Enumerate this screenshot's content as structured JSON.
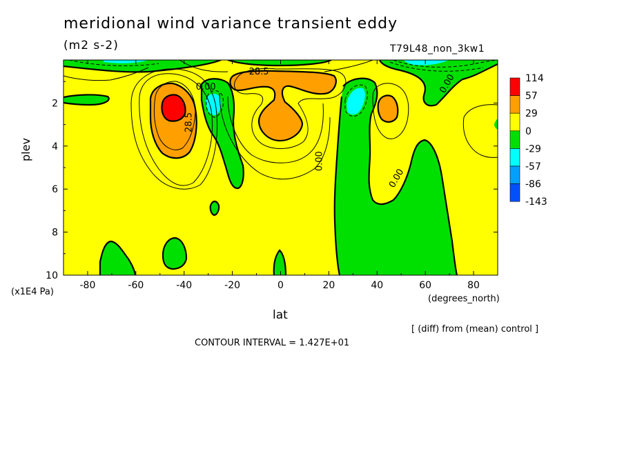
{
  "header": {
    "title": "meridional wind variance transient eddy",
    "units": "(m2 s-2)",
    "run_name": "T79L48_non_3kw1"
  },
  "axes": {
    "ylabel": "plev",
    "y_multiplier": "(x1E4 Pa)",
    "xlabel": "lat",
    "x_unit": "(degrees_north)"
  },
  "notes": {
    "diff": "[ (diff) from (mean) control ]",
    "contour_interval": "CONTOUR INTERVAL = 1.427E+01"
  },
  "chart_data": {
    "type": "heatmap",
    "title": "meridional wind variance transient eddy",
    "xlabel": "lat",
    "ylabel": "plev",
    "xlim": [
      -90,
      90
    ],
    "ylim": [
      10,
      0
    ],
    "x_ticks": [
      "-80",
      "-60",
      "-40",
      "-20",
      "0",
      "20",
      "40",
      "60",
      "80"
    ],
    "x_tick_values": [
      -80,
      -60,
      -40,
      -20,
      0,
      20,
      40,
      60,
      80
    ],
    "y_ticks": [
      "2",
      "4",
      "6",
      "8",
      "10"
    ],
    "y_tick_values": [
      2,
      4,
      6,
      8,
      10
    ],
    "legend": {
      "placement": "right",
      "labels": [
        "114",
        "57",
        "29",
        "0",
        "-29",
        "-57",
        "-86",
        "-143"
      ],
      "colors": [
        "#ff0000",
        "#ffa000",
        "#ffff00",
        "#00e000",
        "#00ffff",
        "#00a0ff",
        "#0050ff"
      ]
    },
    "contour_labels": [
      {
        "text": "28.5",
        "lat": -9,
        "plev": 0.55,
        "angle": 0
      },
      {
        "text": "0.00",
        "lat": -31,
        "plev": 1.25,
        "angle": 0
      },
      {
        "text": "28.5",
        "lat": -38,
        "plev": 2.9,
        "angle": -90
      },
      {
        "text": "0.00",
        "lat": 16,
        "plev": 4.7,
        "angle": -90
      },
      {
        "text": "0.00",
        "lat": 48,
        "plev": 5.5,
        "angle": -60
      },
      {
        "text": "0.00",
        "lat": 69,
        "plev": 1.1,
        "angle": -60
      }
    ],
    "regions": [
      {
        "level": "0 to 29",
        "description": "background"
      },
      {
        "level": "29 to 57",
        "center": [
          -42,
          2.7
        ]
      },
      {
        "level": "57 to 114",
        "center": [
          -43,
          2.1
        ]
      },
      {
        "level": "29 to 57",
        "center": [
          0,
          1.4
        ]
      },
      {
        "level": "29 to 57",
        "center": [
          0,
          2.8
        ]
      },
      {
        "level": "29 to 57",
        "center": [
          44,
          2.3
        ]
      },
      {
        "level": "-29 to 0",
        "center": [
          -30,
          3.5
        ]
      },
      {
        "level": "-57 to -29",
        "center": [
          -27,
          1.9
        ]
      },
      {
        "level": "-29 to 0",
        "center": [
          35,
          6.0
        ]
      },
      {
        "level": "-57 to -29",
        "center": [
          31,
          1.6
        ]
      },
      {
        "level": "-29 to 0",
        "center": [
          75,
          0.8
        ]
      },
      {
        "level": "-57 to -29",
        "center": [
          70,
          0.1
        ]
      },
      {
        "level": "-29 to 0",
        "center": [
          -70,
          1.85
        ]
      },
      {
        "level": "-29 to 0",
        "center": [
          -27,
          6.8
        ]
      },
      {
        "level": "-29 to 0",
        "center": [
          -73,
          9.2
        ]
      },
      {
        "level": "-29 to 0",
        "center": [
          -46,
          9.1
        ]
      },
      {
        "level": "-29 to 0",
        "center": [
          -1,
          9.1
        ]
      }
    ]
  }
}
